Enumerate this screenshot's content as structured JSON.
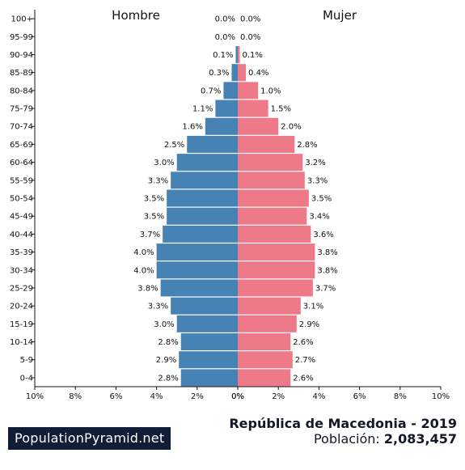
{
  "chart_data": {
    "type": "bar",
    "orientation": "horizontal-pyramid",
    "left_label": "Hombre",
    "right_label": "Mujer",
    "categories": [
      "0-4",
      "5-9",
      "10-14",
      "15-19",
      "20-24",
      "25-29",
      "30-34",
      "35-39",
      "40-44",
      "45-49",
      "50-54",
      "55-59",
      "60-64",
      "65-69",
      "70-74",
      "75-79",
      "80-84",
      "85-89",
      "90-94",
      "95-99",
      "100+"
    ],
    "series": [
      {
        "name": "Hombre",
        "values": [
          2.8,
          2.9,
          2.8,
          3.0,
          3.3,
          3.8,
          4.0,
          4.0,
          3.7,
          3.5,
          3.5,
          3.3,
          3.0,
          2.5,
          1.6,
          1.1,
          0.7,
          0.3,
          0.1,
          0.0,
          0.0
        ],
        "labels": [
          "2.8%",
          "2.9%",
          "2.8%",
          "3.0%",
          "3.3%",
          "3.8%",
          "4.0%",
          "4.0%",
          "3.7%",
          "3.5%",
          "3.5%",
          "3.3%",
          "3.0%",
          "2.5%",
          "1.6%",
          "1.1%",
          "0.7%",
          "0.3%",
          "0.1%",
          "0.0%",
          "0.0%"
        ]
      },
      {
        "name": "Mujer",
        "values": [
          2.6,
          2.7,
          2.6,
          2.9,
          3.1,
          3.7,
          3.8,
          3.8,
          3.6,
          3.4,
          3.5,
          3.3,
          3.2,
          2.8,
          2.0,
          1.5,
          1.0,
          0.4,
          0.1,
          0.0,
          0.0
        ],
        "labels": [
          "2.6%",
          "2.7%",
          "2.6%",
          "2.9%",
          "3.1%",
          "3.7%",
          "3.8%",
          "3.8%",
          "3.6%",
          "3.4%",
          "3.5%",
          "3.3%",
          "3.2%",
          "2.8%",
          "2.0%",
          "1.5%",
          "1.0%",
          "0.4%",
          "0.1%",
          "0.0%",
          "0.0%"
        ]
      }
    ],
    "xlim": [
      -10,
      10
    ],
    "xticks": [
      "10%",
      "8%",
      "6%",
      "4%",
      "2%",
      "0%",
      "0%",
      "2%",
      "4%",
      "6%",
      "8%",
      "10%"
    ],
    "colors": {
      "male": "#4682b4",
      "female": "#ee7989"
    },
    "grid": false
  },
  "footer": {
    "logo": "PopulationPyramid.net",
    "title": "República de Macedonia - 2019",
    "population_label": "Población:",
    "population_value": "2,083,457"
  }
}
